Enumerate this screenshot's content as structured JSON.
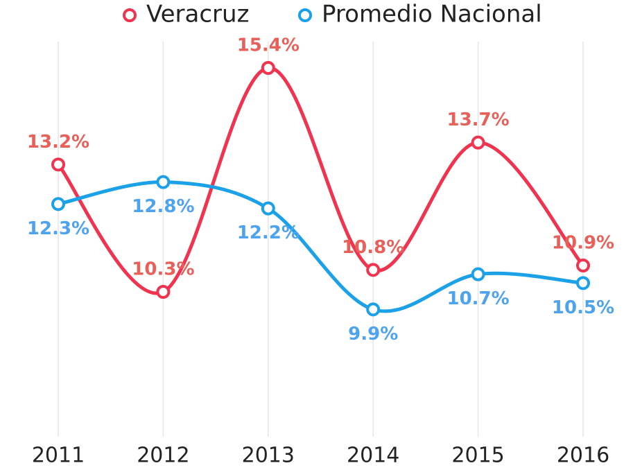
{
  "chart_data": {
    "type": "line",
    "categories": [
      "2011",
      "2012",
      "2013",
      "2014",
      "2015",
      "2016"
    ],
    "series": [
      {
        "name": "Veracruz",
        "color": "#f0344f",
        "label_color": "#e8605a",
        "label_position": "above",
        "values": [
          13.2,
          10.3,
          15.4,
          10.8,
          13.7,
          10.9
        ],
        "value_labels": [
          "13.2%",
          "10.3%",
          "15.4%",
          "10.8%",
          "13.7%",
          "10.9%"
        ]
      },
      {
        "name": "Promedio Nacional",
        "color": "#1aa1e8",
        "label_color": "#4ea3ef",
        "label_position": "below",
        "values": [
          12.3,
          12.8,
          12.2,
          9.9,
          10.7,
          10.5
        ],
        "value_labels": [
          "12.3%",
          "12.8%",
          "12.2%",
          "9.9%",
          "10.7%",
          "10.5%"
        ]
      }
    ],
    "ylim": [
      7,
      16
    ],
    "grid": true,
    "legend": "top",
    "smooth": true
  }
}
